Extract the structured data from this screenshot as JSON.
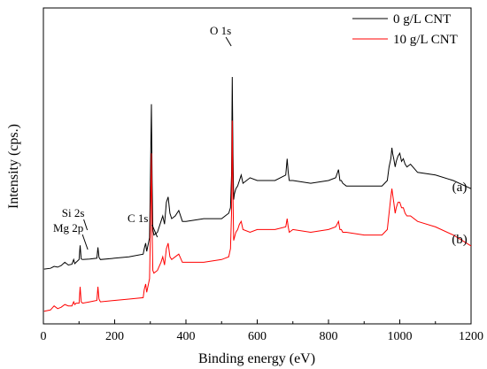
{
  "chart_data": {
    "type": "line",
    "xlabel": "Binding energy (eV)",
    "ylabel": "Intensity (cps.)",
    "xlim": [
      0,
      1200
    ],
    "x_ticks": [
      0,
      200,
      400,
      600,
      800,
      1000,
      1200
    ],
    "y_scale": "arbitrary (no tick labels)",
    "ylim": [
      0,
      1
    ],
    "legend_position": "top-right",
    "series": [
      {
        "name": "0 g/L CNT",
        "label": "(a)",
        "color": "#000000",
        "x": [
          2,
          20,
          30,
          40,
          50,
          60,
          70,
          80,
          85,
          88,
          92,
          100,
          103,
          106,
          110,
          130,
          150,
          153,
          156,
          160,
          200,
          240,
          280,
          283,
          287,
          290,
          298,
          300,
          303,
          305,
          307,
          310,
          320,
          330,
          335,
          340,
          345,
          350,
          355,
          360,
          370,
          380,
          390,
          400,
          450,
          500,
          520,
          525,
          528,
          530,
          532,
          534,
          536,
          538,
          540,
          545,
          550,
          555,
          560,
          580,
          600,
          650,
          680,
          684,
          687,
          690,
          700,
          750,
          800,
          820,
          828,
          832,
          836,
          840,
          850,
          900,
          950,
          965,
          970,
          975,
          978,
          980,
          983,
          987,
          990,
          995,
          1000,
          1005,
          1010,
          1015,
          1020,
          1030,
          1050,
          1100,
          1150,
          1200
        ],
        "y": [
          0.175,
          0.178,
          0.185,
          0.182,
          0.188,
          0.2,
          0.19,
          0.193,
          0.21,
          0.195,
          0.2,
          0.21,
          0.262,
          0.212,
          0.21,
          0.212,
          0.215,
          0.255,
          0.218,
          0.21,
          0.215,
          0.22,
          0.23,
          0.25,
          0.27,
          0.24,
          0.29,
          0.49,
          0.78,
          0.5,
          0.32,
          0.3,
          0.31,
          0.35,
          0.37,
          0.34,
          0.42,
          0.44,
          0.38,
          0.36,
          0.37,
          0.39,
          0.35,
          0.35,
          0.36,
          0.36,
          0.38,
          0.4,
          0.52,
          0.88,
          0.6,
          0.43,
          0.45,
          0.46,
          0.47,
          0.48,
          0.5,
          0.52,
          0.49,
          0.51,
          0.5,
          0.5,
          0.52,
          0.58,
          0.53,
          0.5,
          0.5,
          0.49,
          0.5,
          0.51,
          0.54,
          0.5,
          0.5,
          0.49,
          0.48,
          0.48,
          0.48,
          0.5,
          0.55,
          0.58,
          0.62,
          0.6,
          0.58,
          0.55,
          0.57,
          0.59,
          0.6,
          0.57,
          0.58,
          0.56,
          0.55,
          0.56,
          0.53,
          0.52,
          0.5,
          0.47
        ]
      },
      {
        "name": "10 g/L CNT",
        "label": "(b)",
        "color": "#ff0000",
        "x": [
          2,
          20,
          30,
          40,
          50,
          60,
          70,
          80,
          85,
          88,
          92,
          100,
          103,
          106,
          110,
          130,
          150,
          153,
          156,
          160,
          200,
          240,
          280,
          283,
          287,
          290,
          298,
          300,
          303,
          305,
          307,
          310,
          320,
          330,
          335,
          340,
          345,
          350,
          355,
          360,
          370,
          380,
          390,
          400,
          450,
          500,
          520,
          525,
          528,
          530,
          532,
          534,
          536,
          538,
          540,
          545,
          550,
          555,
          560,
          580,
          600,
          650,
          680,
          684,
          687,
          690,
          700,
          750,
          800,
          820,
          828,
          832,
          836,
          840,
          850,
          900,
          950,
          965,
          970,
          975,
          978,
          980,
          983,
          987,
          990,
          995,
          1000,
          1005,
          1010,
          1015,
          1020,
          1030,
          1050,
          1100,
          1150,
          1200
        ],
        "y": [
          0.02,
          0.025,
          0.04,
          0.03,
          0.035,
          0.045,
          0.04,
          0.04,
          0.055,
          0.045,
          0.05,
          0.05,
          0.11,
          0.055,
          0.05,
          0.055,
          0.06,
          0.11,
          0.065,
          0.055,
          0.06,
          0.065,
          0.07,
          0.1,
          0.12,
          0.09,
          0.14,
          0.3,
          0.6,
          0.32,
          0.17,
          0.16,
          0.17,
          0.2,
          0.22,
          0.19,
          0.25,
          0.27,
          0.22,
          0.21,
          0.22,
          0.23,
          0.2,
          0.2,
          0.2,
          0.21,
          0.22,
          0.25,
          0.38,
          0.72,
          0.45,
          0.28,
          0.29,
          0.3,
          0.31,
          0.32,
          0.34,
          0.35,
          0.32,
          0.31,
          0.32,
          0.32,
          0.33,
          0.36,
          0.33,
          0.31,
          0.32,
          0.31,
          0.32,
          0.33,
          0.35,
          0.32,
          0.32,
          0.31,
          0.31,
          0.3,
          0.3,
          0.32,
          0.38,
          0.44,
          0.47,
          0.45,
          0.42,
          0.38,
          0.4,
          0.42,
          0.42,
          0.4,
          0.4,
          0.38,
          0.37,
          0.37,
          0.35,
          0.33,
          0.3,
          0.26
        ]
      }
    ],
    "annotations": [
      {
        "text": "O 1s",
        "x": 532
      },
      {
        "text": "C 1s",
        "x": 285
      },
      {
        "text": "Si 2s",
        "x": 153
      },
      {
        "text": "Mg 2p",
        "x": 50
      }
    ]
  }
}
